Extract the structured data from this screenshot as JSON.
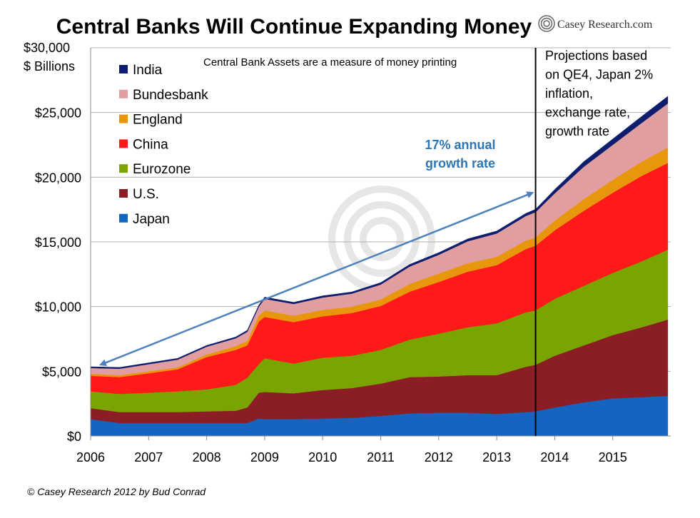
{
  "chart_data": {
    "type": "area",
    "stacked": true,
    "title": "Central Banks Will Continue Expanding Money",
    "annotation": "Central Bank Assets are a measure of money printing",
    "ylabel_line1": "$30,000",
    "ylabel_line2": "$ Billions",
    "y_ticks": [
      "$0",
      "$5,000",
      "$10,000",
      "$15,000",
      "$20,000",
      "$25,000"
    ],
    "ylim": [
      0,
      30000
    ],
    "x_ticks": [
      "2006",
      "2007",
      "2008",
      "2009",
      "2010",
      "2011",
      "2012",
      "2013",
      "2014",
      "2015"
    ],
    "xlim": [
      2006,
      2016
    ],
    "grid": true,
    "legend_position": "top-left",
    "x": [
      2006.0,
      2006.5,
      2007.0,
      2007.5,
      2008.0,
      2008.5,
      2008.7,
      2008.9,
      2009.0,
      2009.5,
      2010.0,
      2010.5,
      2011.0,
      2011.5,
      2012.0,
      2012.5,
      2013.0,
      2013.5,
      2013.67,
      2014.0,
      2014.5,
      2015.0,
      2015.5,
      2015.95
    ],
    "series": [
      {
        "name": "Japan",
        "color": "#1565c0",
        "values": [
          1300,
          1000,
          1000,
          1000,
          1000,
          1000,
          1000,
          1350,
          1300,
          1300,
          1350,
          1400,
          1550,
          1750,
          1800,
          1800,
          1700,
          1850,
          1900,
          2200,
          2600,
          2900,
          3000,
          3100
        ]
      },
      {
        "name": "U.S.",
        "color": "#8b1e24",
        "values": [
          850,
          850,
          850,
          850,
          900,
          950,
          1200,
          2000,
          2100,
          2000,
          2200,
          2300,
          2500,
          2800,
          2800,
          2900,
          3000,
          3500,
          3600,
          4000,
          4400,
          4900,
          5400,
          5900
        ]
      },
      {
        "name": "Eurozone",
        "color": "#7aa500",
        "values": [
          1300,
          1400,
          1500,
          1600,
          1700,
          2000,
          2300,
          2200,
          2600,
          2300,
          2500,
          2500,
          2600,
          2900,
          3300,
          3700,
          4000,
          4200,
          4200,
          4400,
          4600,
          4800,
          5100,
          5400
        ]
      },
      {
        "name": "China",
        "color": "#ff1a1a",
        "values": [
          1200,
          1300,
          1500,
          1700,
          2500,
          2700,
          2500,
          3300,
          3200,
          3200,
          3200,
          3300,
          3400,
          3700,
          4000,
          4300,
          4500,
          4900,
          5000,
          5300,
          5800,
          6200,
          6600,
          6700
        ]
      },
      {
        "name": "England",
        "color": "#e8960b",
        "values": [
          150,
          150,
          150,
          150,
          200,
          300,
          350,
          450,
          500,
          500,
          500,
          500,
          500,
          600,
          650,
          650,
          650,
          650,
          650,
          750,
          900,
          1000,
          1100,
          1200
        ]
      },
      {
        "name": "Bundesbank",
        "color": "#e09ea0",
        "values": [
          450,
          500,
          550,
          600,
          600,
          600,
          700,
          700,
          900,
          900,
          950,
          1000,
          1150,
          1350,
          1450,
          1700,
          1800,
          1900,
          1950,
          2100,
          2500,
          2700,
          3000,
          3400
        ]
      },
      {
        "name": "India",
        "color": "#0d1e6e",
        "values": [
          100,
          100,
          100,
          100,
          100,
          100,
          120,
          120,
          130,
          130,
          130,
          130,
          150,
          160,
          170,
          180,
          190,
          200,
          220,
          300,
          400,
          450,
          500,
          550
        ]
      }
    ],
    "divider_x": 2013.67,
    "arrow_from": {
      "x": 2006.17,
      "y": 5500
    },
    "arrow_to": {
      "x": 2013.62,
      "y": 18800
    },
    "growth_line1": "17% annual",
    "growth_line2": "growth rate",
    "projection_lines": [
      "Projections based",
      "on QE4, Japan 2%",
      "inflation,",
      "exchange rate,",
      "growth rate"
    ],
    "logo_text": "Casey Research.com",
    "credit": "© Casey Research 2012 by Bud Conrad",
    "colors": {
      "arrow": "#4f81bd",
      "growth_text": "#2e75b6",
      "grid": "#b0b0b0"
    }
  }
}
